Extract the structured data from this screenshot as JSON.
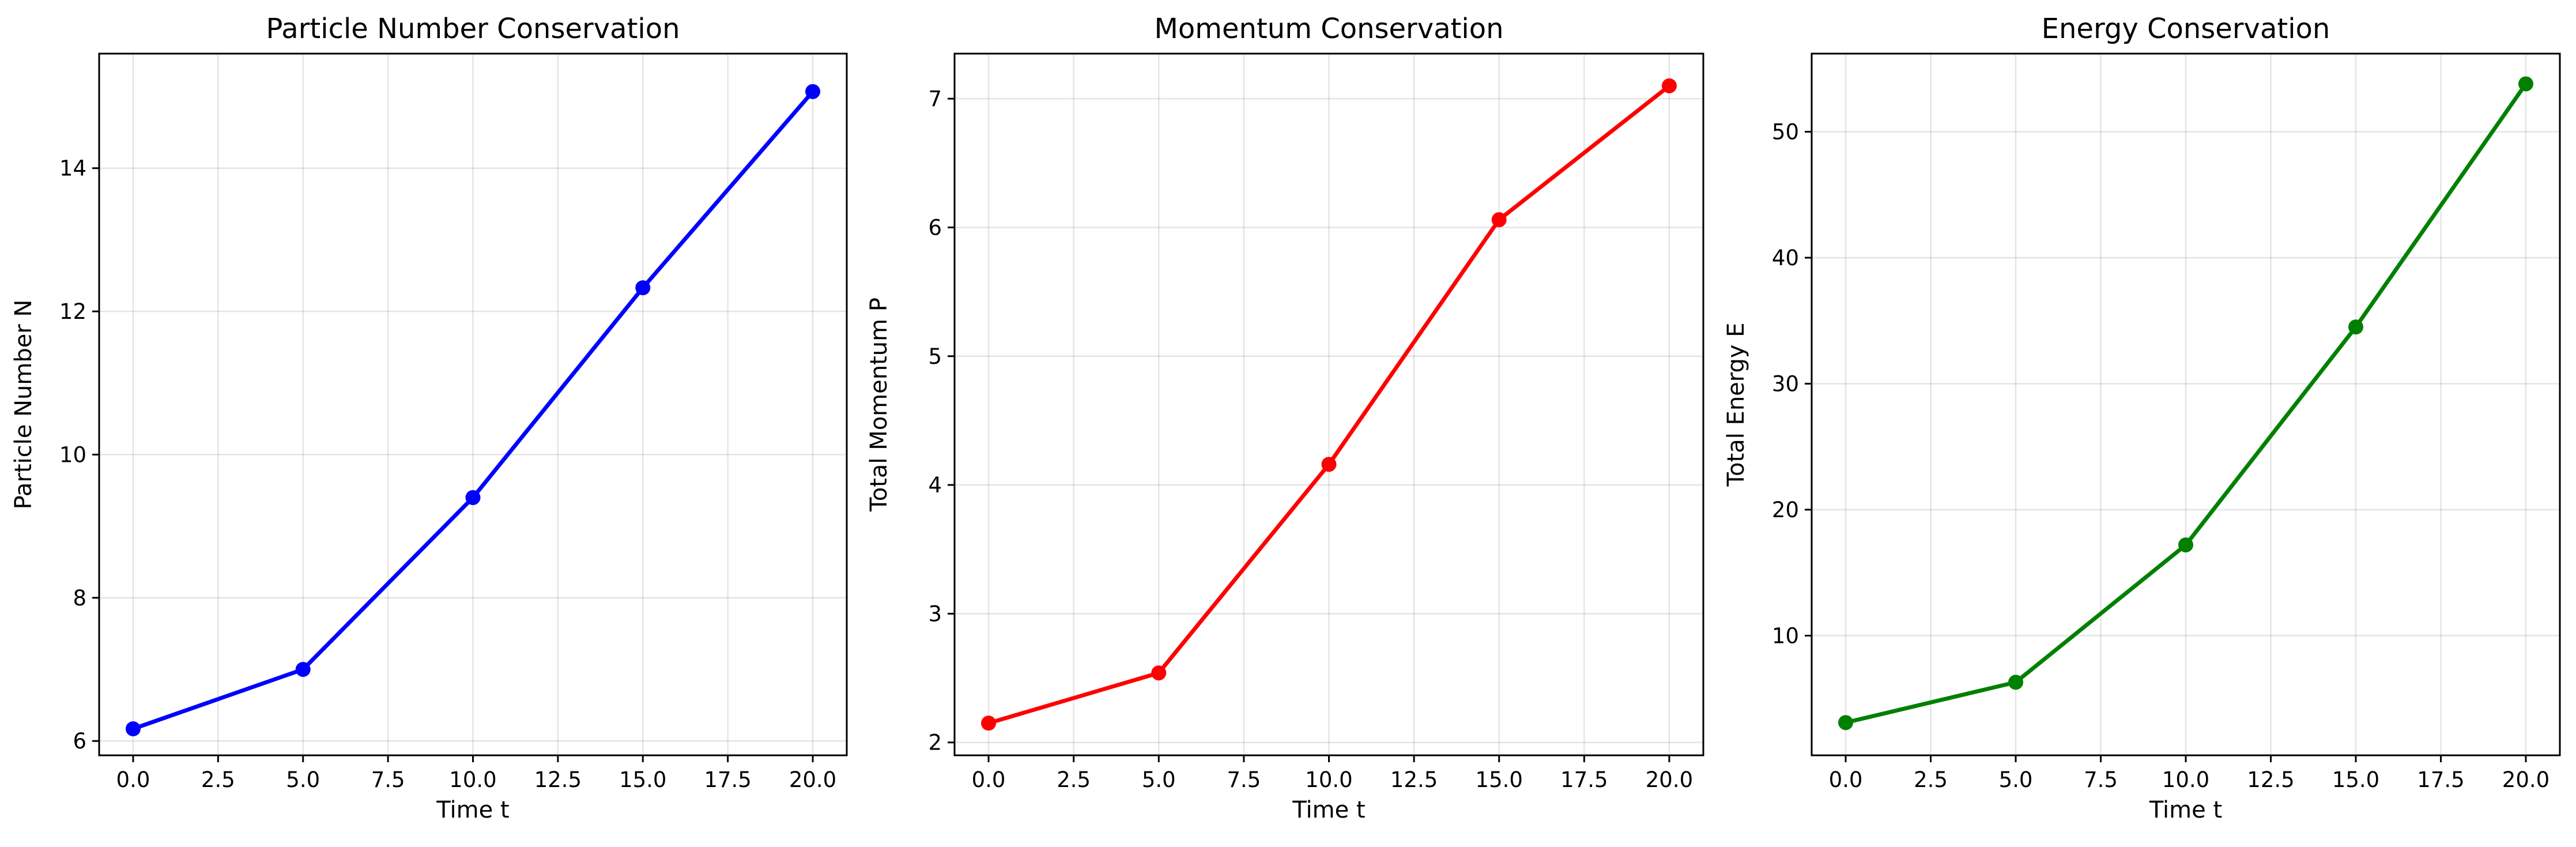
{
  "chart_data": [
    {
      "type": "line",
      "title": "Particle Number Conservation",
      "xlabel": "Time t",
      "ylabel": "Particle Number N",
      "x": [
        0,
        5,
        10,
        15,
        20
      ],
      "series": [
        {
          "values": [
            6.17,
            7.0,
            9.4,
            12.33,
            15.07
          ],
          "color": "#0000ff"
        }
      ],
      "xlim": [
        -1,
        21
      ],
      "ylim": [
        5.8,
        15.6
      ],
      "xticks": [
        0,
        2.5,
        5,
        7.5,
        10,
        12.5,
        15,
        17.5,
        20
      ],
      "xtick_labels": [
        "0.0",
        "2.5",
        "5.0",
        "7.5",
        "10.0",
        "12.5",
        "15.0",
        "17.5",
        "20.0"
      ],
      "yticks": [
        6,
        8,
        10,
        12,
        14
      ],
      "ytick_labels": [
        "6",
        "8",
        "10",
        "12",
        "14"
      ],
      "grid": true,
      "marker": "circle"
    },
    {
      "type": "line",
      "title": "Momentum Conservation",
      "xlabel": "Time t",
      "ylabel": "Total Momentum P",
      "x": [
        0,
        5,
        10,
        15,
        20
      ],
      "series": [
        {
          "values": [
            2.15,
            2.54,
            4.16,
            6.06,
            7.1
          ],
          "color": "#ff0000"
        }
      ],
      "xlim": [
        -1,
        21
      ],
      "ylim": [
        1.9,
        7.35
      ],
      "xticks": [
        0,
        2.5,
        5,
        7.5,
        10,
        12.5,
        15,
        17.5,
        20
      ],
      "xtick_labels": [
        "0.0",
        "2.5",
        "5.0",
        "7.5",
        "10.0",
        "12.5",
        "15.0",
        "17.5",
        "20.0"
      ],
      "yticks": [
        2,
        3,
        4,
        5,
        6,
        7
      ],
      "ytick_labels": [
        "2",
        "3",
        "4",
        "5",
        "6",
        "7"
      ],
      "grid": true,
      "marker": "circle"
    },
    {
      "type": "line",
      "title": "Energy Conservation",
      "xlabel": "Time t",
      "ylabel": "Total Energy E",
      "x": [
        0,
        5,
        10,
        15,
        20
      ],
      "series": [
        {
          "values": [
            3.1,
            6.3,
            17.2,
            34.5,
            53.8
          ],
          "color": "#008000"
        }
      ],
      "xlim": [
        -1,
        21
      ],
      "ylim": [
        0.5,
        56.2
      ],
      "xticks": [
        0,
        2.5,
        5,
        7.5,
        10,
        12.5,
        15,
        17.5,
        20
      ],
      "xtick_labels": [
        "0.0",
        "2.5",
        "5.0",
        "7.5",
        "10.0",
        "12.5",
        "15.0",
        "17.5",
        "20.0"
      ],
      "yticks": [
        10,
        20,
        30,
        40,
        50
      ],
      "ytick_labels": [
        "10",
        "20",
        "30",
        "40",
        "50"
      ],
      "grid": true,
      "marker": "circle"
    }
  ]
}
